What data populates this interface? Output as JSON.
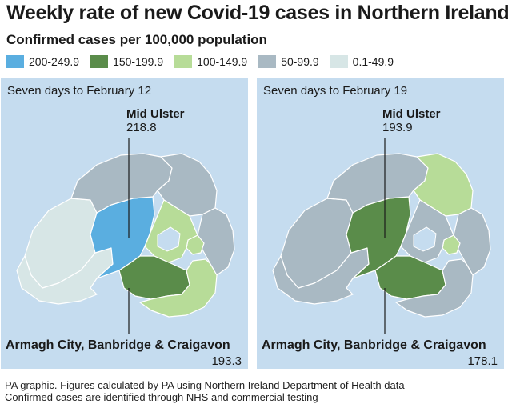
{
  "title": "Weekly rate of new Covid-19 cases in Northern Ireland",
  "subtitle": "Confirmed cases per 100,000 population",
  "legend": [
    {
      "label": "200-249.9",
      "color": "#5aaee0"
    },
    {
      "label": "150-199.9",
      "color": "#5a8c4a"
    },
    {
      "label": "100-149.9",
      "color": "#b7dc98"
    },
    {
      "label": "50-99.9",
      "color": "#a9b9c3"
    },
    {
      "label": "0.1-49.9",
      "color": "#d7e6e6"
    }
  ],
  "colors": {
    "water": "#c5dcef",
    "lough": "#c5dcef",
    "border": "#ffffff",
    "leader": "#1a1a1a"
  },
  "panels": [
    {
      "title": "Seven days to February 12",
      "top_callout": {
        "name": "Mid Ulster",
        "value": "218.8"
      },
      "bottom_callout": {
        "name": "Armagh City, Banbridge & Craigavon",
        "value": "193.3"
      },
      "regions": {
        "northwest": "0.1-49.9",
        "west": "0.1-49.9",
        "mid_ulster": "200-249.9",
        "north": "50-99.9",
        "northeast": "50-99.9",
        "east_coast": "50-99.9",
        "belfast": "100-149.9",
        "armagh": "150-199.9",
        "southeast": "100-149.9",
        "lisburn": "100-149.9"
      }
    },
    {
      "title": "Seven days to February 19",
      "top_callout": {
        "name": "Mid Ulster",
        "value": "193.9"
      },
      "bottom_callout": {
        "name": "Armagh City, Banbridge & Craigavon",
        "value": "178.1"
      },
      "regions": {
        "northwest": "50-99.9",
        "west": "50-99.9",
        "mid_ulster": "150-199.9",
        "north": "50-99.9",
        "northeast": "100-149.9",
        "east_coast": "50-99.9",
        "belfast": "100-149.9",
        "armagh": "150-199.9",
        "southeast": "50-99.9",
        "lisburn": "50-99.9"
      }
    }
  ],
  "footer": {
    "line1": "PA graphic. Figures calculated by PA using Northern Ireland Department of Health data",
    "line2": "Confirmed cases are identified through NHS and commercial testing"
  }
}
